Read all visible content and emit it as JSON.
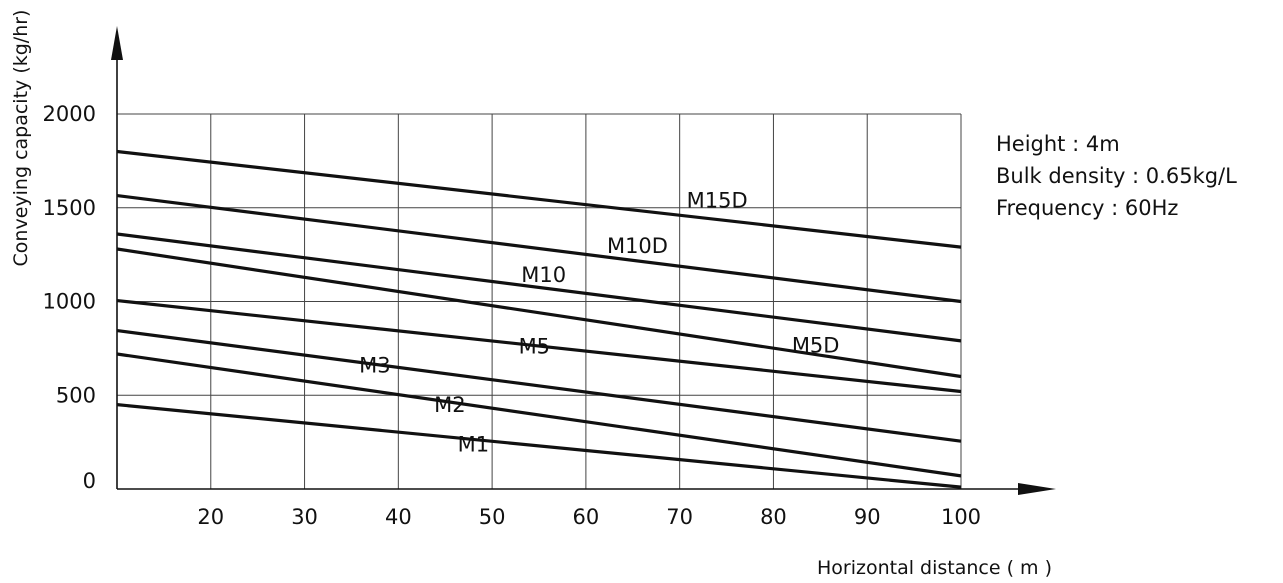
{
  "chart_data": {
    "type": "line",
    "title": "",
    "xlabel": "Horizontal distance ( m )",
    "ylabel": "Conveying capacity (kg/hr)",
    "xlim": [
      10,
      100
    ],
    "ylim": [
      0,
      2000
    ],
    "x_ticks": [
      "20",
      "30",
      "40",
      "50",
      "60",
      "70",
      "80",
      "90",
      "100"
    ],
    "y_ticks": [
      "0",
      "500",
      "1000",
      "1500",
      "2000"
    ],
    "grid": true,
    "series": [
      {
        "name": "M15D",
        "x": [
          10,
          100
        ],
        "y": [
          1800,
          1290
        ]
      },
      {
        "name": "M10D",
        "x": [
          10,
          100
        ],
        "y": [
          1565,
          1000
        ]
      },
      {
        "name": "M10",
        "x": [
          10,
          100
        ],
        "y": [
          1360,
          790
        ]
      },
      {
        "name": "M5D",
        "x": [
          10,
          100
        ],
        "y": [
          1280,
          600
        ]
      },
      {
        "name": "M5",
        "x": [
          10,
          100
        ],
        "y": [
          1005,
          520
        ]
      },
      {
        "name": "M3",
        "x": [
          10,
          100
        ],
        "y": [
          845,
          255
        ]
      },
      {
        "name": "M2",
        "x": [
          10,
          100
        ],
        "y": [
          720,
          70
        ]
      },
      {
        "name": "M1",
        "x": [
          10,
          100
        ],
        "y": [
          450,
          10
        ]
      }
    ],
    "annotations": [
      "Height : 4m",
      "Bulk density : 0.65kg/L",
      "Frequency : 60Hz"
    ]
  }
}
